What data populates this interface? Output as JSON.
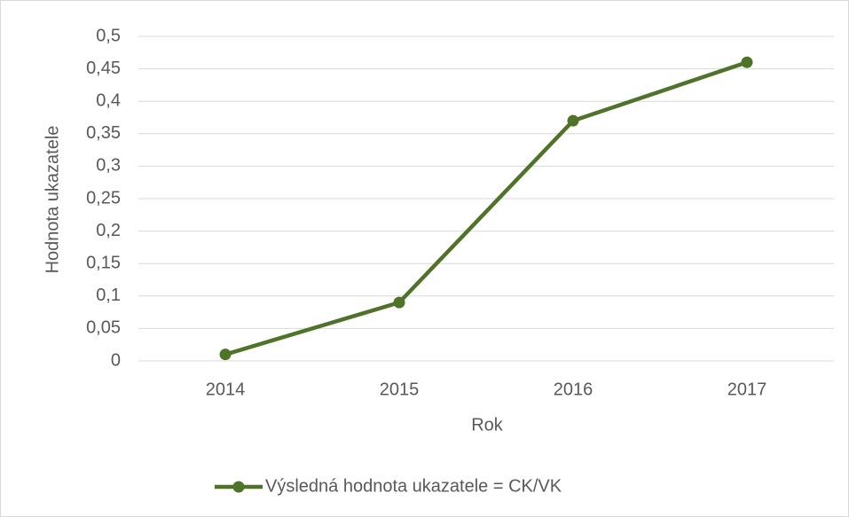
{
  "chart_data": {
    "type": "line",
    "x_label": "Rok",
    "y_label": "Hodnota ukazatele",
    "categories": [
      "2014",
      "2015",
      "2016",
      "2017"
    ],
    "series": [
      {
        "name": "Výsledná hodnota ukazatele = CK/VK",
        "color": "#4f7329",
        "values": [
          0.01,
          0.09,
          0.37,
          0.46
        ]
      }
    ],
    "ylim": [
      0,
      0.5
    ],
    "yticks": [
      0,
      {
        "value": 0.05,
        "label": "0,05"
      },
      {
        "value": 0.1,
        "label": "0,1"
      },
      {
        "value": 0.15,
        "label": "0,15"
      },
      {
        "value": 0.2,
        "label": "0,2"
      },
      {
        "value": 0.25,
        "label": "0,25"
      },
      {
        "value": 0.3,
        "label": "0,3"
      },
      {
        "value": 0.35,
        "label": "0,35"
      },
      {
        "value": 0.4,
        "label": "0,4"
      },
      {
        "value": 0.45,
        "label": "0,45"
      },
      {
        "value": 0.5,
        "label": "0,5"
      }
    ],
    "grid": true,
    "legend": "bottom"
  }
}
